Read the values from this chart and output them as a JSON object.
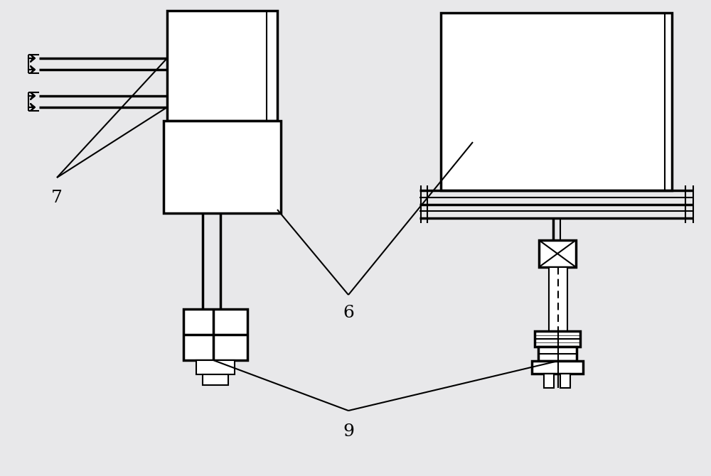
{
  "background_color": "#e8e8ea",
  "line_color": "#000000",
  "lw": 1.5,
  "tlw": 2.5,
  "label_7": "7",
  "label_6": "6",
  "label_9": "9",
  "label_color": "#000000",
  "label_fontsize": 18
}
